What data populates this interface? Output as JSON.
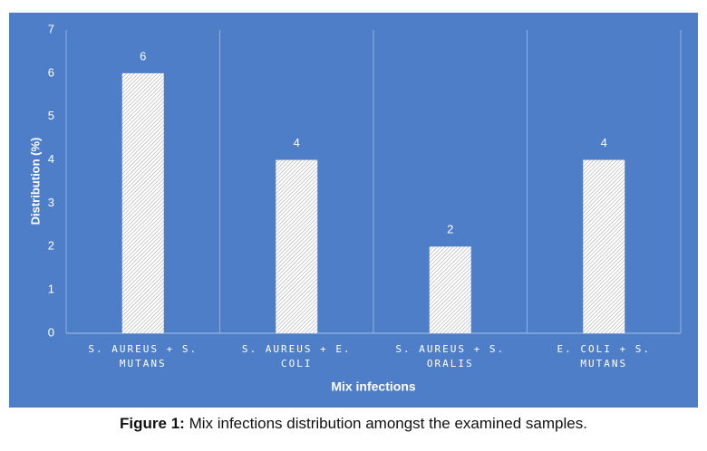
{
  "chart_data": {
    "type": "bar",
    "y_label": "Distribution (%)",
    "x_label": "Mix infections",
    "categories": [
      "S. AUREUS + S. MUTANS",
      "S. AUREUS + E. COLI",
      "S. AUREUS + S. ORALIS",
      "E. COLI + S. MUTANS"
    ],
    "values": [
      6,
      4,
      2,
      4
    ],
    "ylim": [
      0,
      7
    ],
    "yticks": [
      0,
      1,
      2,
      3,
      4,
      5,
      6,
      7
    ]
  },
  "caption": {
    "label": "Figure 1:",
    "text": "Mix infections distribution amongst the examined samples."
  }
}
